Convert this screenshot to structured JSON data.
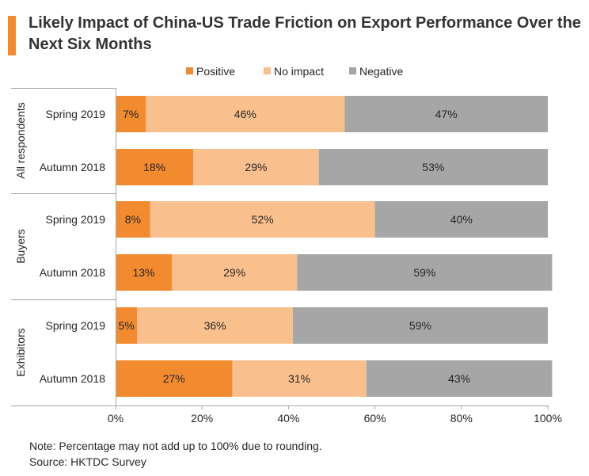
{
  "title": "Likely Impact of China-US Trade Friction on Export Performance Over the Next Six Months",
  "notes": {
    "note": "Note: Percentage may not add up to 100% due to rounding.",
    "source": "Source: HKTDC Survey"
  },
  "chart_data": {
    "type": "bar",
    "orientation": "horizontal",
    "stacked": true,
    "title": "Likely Impact of China-US Trade Friction on Export Performance Over the Next Six Months",
    "legend_position": "top",
    "grid": false,
    "xlim": [
      0,
      100
    ],
    "x_ticks": [
      "0%",
      "20%",
      "40%",
      "60%",
      "80%",
      "100%"
    ],
    "groups": [
      {
        "name": "All respondents",
        "categories": [
          "Spring 2019",
          "Autumn 2018"
        ]
      },
      {
        "name": "Buyers",
        "categories": [
          "Spring 2019",
          "Autumn 2018"
        ]
      },
      {
        "name": "Exhibitors",
        "categories": [
          "Spring 2019",
          "Autumn 2018"
        ]
      }
    ],
    "series": [
      {
        "name": "Positive",
        "color": "#F28A30",
        "values": [
          7,
          18,
          8,
          13,
          5,
          27
        ]
      },
      {
        "name": "No impact",
        "color": "#F9C08D",
        "values": [
          46,
          29,
          52,
          29,
          36,
          31
        ]
      },
      {
        "name": "Negative",
        "color": "#A6A6A6",
        "values": [
          47,
          53,
          40,
          59,
          59,
          43
        ]
      }
    ]
  }
}
